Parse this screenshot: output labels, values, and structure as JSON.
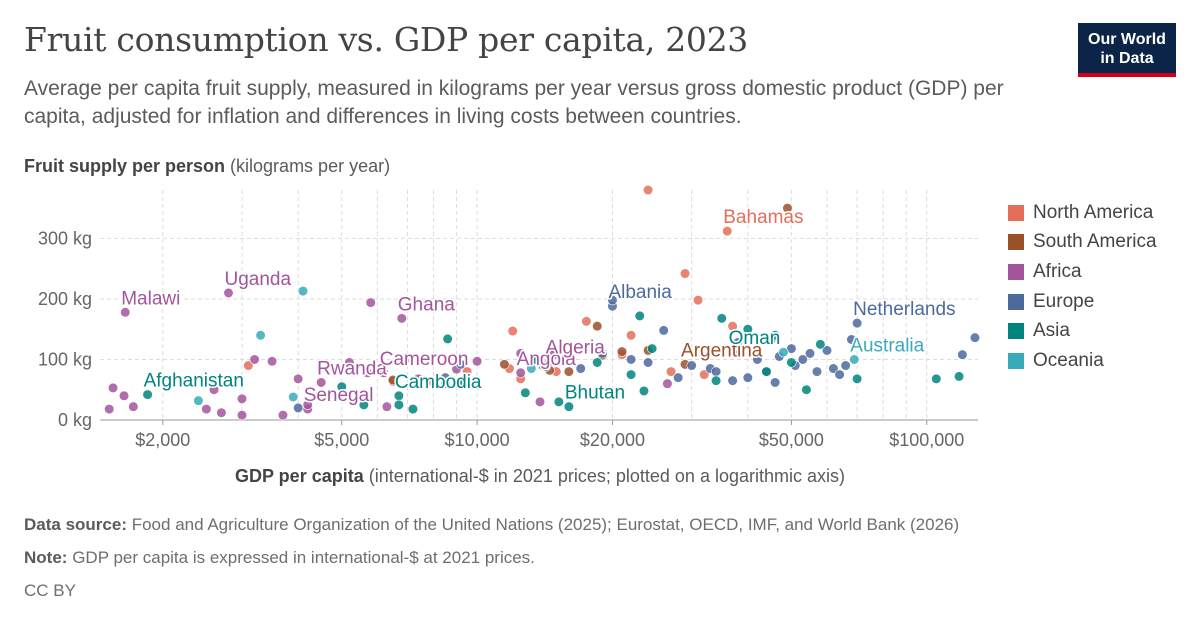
{
  "header": {
    "title": "Fruit consumption vs. GDP per capita, 2023",
    "subtitle": "Average per capita fruit supply, measured in kilograms per year versus gross domestic product (GDP) per capita, adjusted for inflation and differences in living costs between countries.",
    "logo_line1": "Our World",
    "logo_line2": "in Data"
  },
  "footer": {
    "source_label": "Data source:",
    "source_text": "Food and Agriculture Organization of the United Nations (2025); Eurostat, OECD, IMF, and World Bank (2026)",
    "note_label": "Note:",
    "note_text": "GDP per capita is expressed in international-$ at 2021 prices.",
    "license": "CC BY"
  },
  "colors": {
    "North America": "#e56e5a",
    "South America": "#9a5129",
    "Africa": "#a2559c",
    "Europe": "#4c6a9c",
    "Asia": "#00847e",
    "Oceania": "#38aaba",
    "grid": "#dddddd",
    "axis_text": "#666666"
  },
  "chart_data": {
    "type": "scatter",
    "title": "Fruit consumption vs. GDP per capita, 2023",
    "ylabel_bold": "Fruit supply per person",
    "ylabel_unit": "(kilograms per year)",
    "xlabel_bold": "GDP per capita",
    "xlabel_unit": "(international-$ in 2021 prices; plotted on a logarithmic axis)",
    "x_scale": "log",
    "xlim": [
      1450,
      130000
    ],
    "ylim": [
      0,
      380
    ],
    "x_ticks": [
      {
        "value": 2000,
        "label": "$2,000"
      },
      {
        "value": 5000,
        "label": "$5,000"
      },
      {
        "value": 10000,
        "label": "$10,000"
      },
      {
        "value": 20000,
        "label": "$20,000"
      },
      {
        "value": 50000,
        "label": "$50,000"
      },
      {
        "value": 100000,
        "label": "$100,000"
      }
    ],
    "y_ticks": [
      {
        "value": 0,
        "label": "0 kg"
      },
      {
        "value": 100,
        "label": "100 kg"
      },
      {
        "value": 200,
        "label": "200 kg"
      },
      {
        "value": 300,
        "label": "300 kg"
      }
    ],
    "grid": true,
    "legend_position": "right",
    "series": [
      {
        "name": "North America",
        "points": [
          {
            "x": 24000,
            "y": 380
          },
          {
            "x": 36000,
            "y": 312,
            "label": "Bahamas"
          },
          {
            "x": 29000,
            "y": 242
          },
          {
            "x": 31000,
            "y": 198
          },
          {
            "x": 37000,
            "y": 155
          },
          {
            "x": 17500,
            "y": 163
          },
          {
            "x": 12000,
            "y": 147
          },
          {
            "x": 21000,
            "y": 108
          },
          {
            "x": 15000,
            "y": 80
          },
          {
            "x": 11800,
            "y": 85
          },
          {
            "x": 9500,
            "y": 80
          },
          {
            "x": 27000,
            "y": 80
          },
          {
            "x": 6500,
            "y": 64
          },
          {
            "x": 8000,
            "y": 62
          },
          {
            "x": 3100,
            "y": 90
          },
          {
            "x": 22000,
            "y": 140
          },
          {
            "x": 32000,
            "y": 75
          },
          {
            "x": 12500,
            "y": 68
          }
        ]
      },
      {
        "name": "South America",
        "points": [
          {
            "x": 49000,
            "y": 350
          },
          {
            "x": 18500,
            "y": 155
          },
          {
            "x": 29000,
            "y": 92,
            "label": "Argentina"
          },
          {
            "x": 21000,
            "y": 113
          },
          {
            "x": 14500,
            "y": 82
          },
          {
            "x": 16000,
            "y": 80
          },
          {
            "x": 11500,
            "y": 92
          },
          {
            "x": 19000,
            "y": 107
          },
          {
            "x": 6500,
            "y": 66
          },
          {
            "x": 24000,
            "y": 115
          }
        ]
      },
      {
        "name": "Africa",
        "points": [
          {
            "x": 1650,
            "y": 178,
            "label": "Malawi"
          },
          {
            "x": 2800,
            "y": 210,
            "label": "Uganda"
          },
          {
            "x": 5800,
            "y": 194
          },
          {
            "x": 6800,
            "y": 168,
            "label": "Ghana"
          },
          {
            "x": 4500,
            "y": 62,
            "label": "Rwanda"
          },
          {
            "x": 6200,
            "y": 78,
            "label": "Cameroon"
          },
          {
            "x": 4200,
            "y": 18,
            "label": "Senegal"
          },
          {
            "x": 12500,
            "y": 78,
            "label": "Angola"
          },
          {
            "x": 14500,
            "y": 97,
            "label": "Algeria"
          },
          {
            "x": 1550,
            "y": 53
          },
          {
            "x": 1640,
            "y": 40
          },
          {
            "x": 1520,
            "y": 18
          },
          {
            "x": 1720,
            "y": 22
          },
          {
            "x": 2500,
            "y": 18
          },
          {
            "x": 2700,
            "y": 12
          },
          {
            "x": 3000,
            "y": 8
          },
          {
            "x": 3700,
            "y": 8
          },
          {
            "x": 3200,
            "y": 100
          },
          {
            "x": 3500,
            "y": 97
          },
          {
            "x": 4000,
            "y": 68
          },
          {
            "x": 5200,
            "y": 95
          },
          {
            "x": 5700,
            "y": 78
          },
          {
            "x": 6300,
            "y": 22
          },
          {
            "x": 7400,
            "y": 68
          },
          {
            "x": 9000,
            "y": 84
          },
          {
            "x": 10000,
            "y": 97
          },
          {
            "x": 12500,
            "y": 110
          },
          {
            "x": 13800,
            "y": 30
          },
          {
            "x": 14800,
            "y": 108
          },
          {
            "x": 2600,
            "y": 50
          },
          {
            "x": 4200,
            "y": 25
          },
          {
            "x": 3000,
            "y": 35
          },
          {
            "x": 8500,
            "y": 60
          },
          {
            "x": 26500,
            "y": 60
          }
        ]
      },
      {
        "name": "Europe",
        "points": [
          {
            "x": 20000,
            "y": 188,
            "label": "Albania"
          },
          {
            "x": 70000,
            "y": 160,
            "label": "Netherlands"
          },
          {
            "x": 20000,
            "y": 198
          },
          {
            "x": 26000,
            "y": 148
          },
          {
            "x": 38000,
            "y": 128
          },
          {
            "x": 45000,
            "y": 132
          },
          {
            "x": 50000,
            "y": 118
          },
          {
            "x": 55000,
            "y": 110
          },
          {
            "x": 60000,
            "y": 115
          },
          {
            "x": 66000,
            "y": 90
          },
          {
            "x": 68000,
            "y": 133
          },
          {
            "x": 42000,
            "y": 100
          },
          {
            "x": 47000,
            "y": 105
          },
          {
            "x": 51000,
            "y": 90
          },
          {
            "x": 57000,
            "y": 80
          },
          {
            "x": 62000,
            "y": 85
          },
          {
            "x": 37000,
            "y": 65
          },
          {
            "x": 40000,
            "y": 70
          },
          {
            "x": 44000,
            "y": 80
          },
          {
            "x": 30000,
            "y": 90
          },
          {
            "x": 33000,
            "y": 85
          },
          {
            "x": 28000,
            "y": 70
          },
          {
            "x": 24000,
            "y": 95
          },
          {
            "x": 22000,
            "y": 100
          },
          {
            "x": 19000,
            "y": 110
          },
          {
            "x": 17000,
            "y": 85
          },
          {
            "x": 14000,
            "y": 90
          },
          {
            "x": 9200,
            "y": 92
          },
          {
            "x": 8500,
            "y": 70
          },
          {
            "x": 120000,
            "y": 108
          },
          {
            "x": 128000,
            "y": 136
          },
          {
            "x": 4000,
            "y": 20
          },
          {
            "x": 46000,
            "y": 62
          },
          {
            "x": 53000,
            "y": 100
          },
          {
            "x": 64000,
            "y": 75
          },
          {
            "x": 34000,
            "y": 80
          }
        ]
      },
      {
        "name": "Asia",
        "points": [
          {
            "x": 1850,
            "y": 42,
            "label": "Afghanistan"
          },
          {
            "x": 6700,
            "y": 40,
            "label": "Cambodia"
          },
          {
            "x": 16000,
            "y": 22,
            "label": "Bhutan"
          },
          {
            "x": 37000,
            "y": 112,
            "label": "Oman"
          },
          {
            "x": 23000,
            "y": 172
          },
          {
            "x": 35000,
            "y": 168
          },
          {
            "x": 8600,
            "y": 134
          },
          {
            "x": 5000,
            "y": 55
          },
          {
            "x": 5600,
            "y": 25
          },
          {
            "x": 7200,
            "y": 18
          },
          {
            "x": 9300,
            "y": 65
          },
          {
            "x": 12800,
            "y": 45
          },
          {
            "x": 13500,
            "y": 100
          },
          {
            "x": 15200,
            "y": 30
          },
          {
            "x": 18500,
            "y": 95
          },
          {
            "x": 22000,
            "y": 75
          },
          {
            "x": 23500,
            "y": 48
          },
          {
            "x": 34000,
            "y": 65
          },
          {
            "x": 44000,
            "y": 80
          },
          {
            "x": 50000,
            "y": 95
          },
          {
            "x": 54000,
            "y": 50
          },
          {
            "x": 58000,
            "y": 125
          },
          {
            "x": 70000,
            "y": 68
          },
          {
            "x": 105000,
            "y": 68
          },
          {
            "x": 118000,
            "y": 72
          },
          {
            "x": 40000,
            "y": 150
          },
          {
            "x": 46000,
            "y": 140
          },
          {
            "x": 14200,
            "y": 88
          },
          {
            "x": 24500,
            "y": 118
          },
          {
            "x": 6700,
            "y": 25
          }
        ]
      },
      {
        "name": "Oceania",
        "points": [
          {
            "x": 69000,
            "y": 100,
            "label": "Australia"
          },
          {
            "x": 4100,
            "y": 213
          },
          {
            "x": 2400,
            "y": 32
          },
          {
            "x": 3900,
            "y": 38
          },
          {
            "x": 6900,
            "y": 98
          },
          {
            "x": 13200,
            "y": 85
          },
          {
            "x": 48000,
            "y": 112
          },
          {
            "x": 3300,
            "y": 140
          }
        ]
      }
    ]
  }
}
